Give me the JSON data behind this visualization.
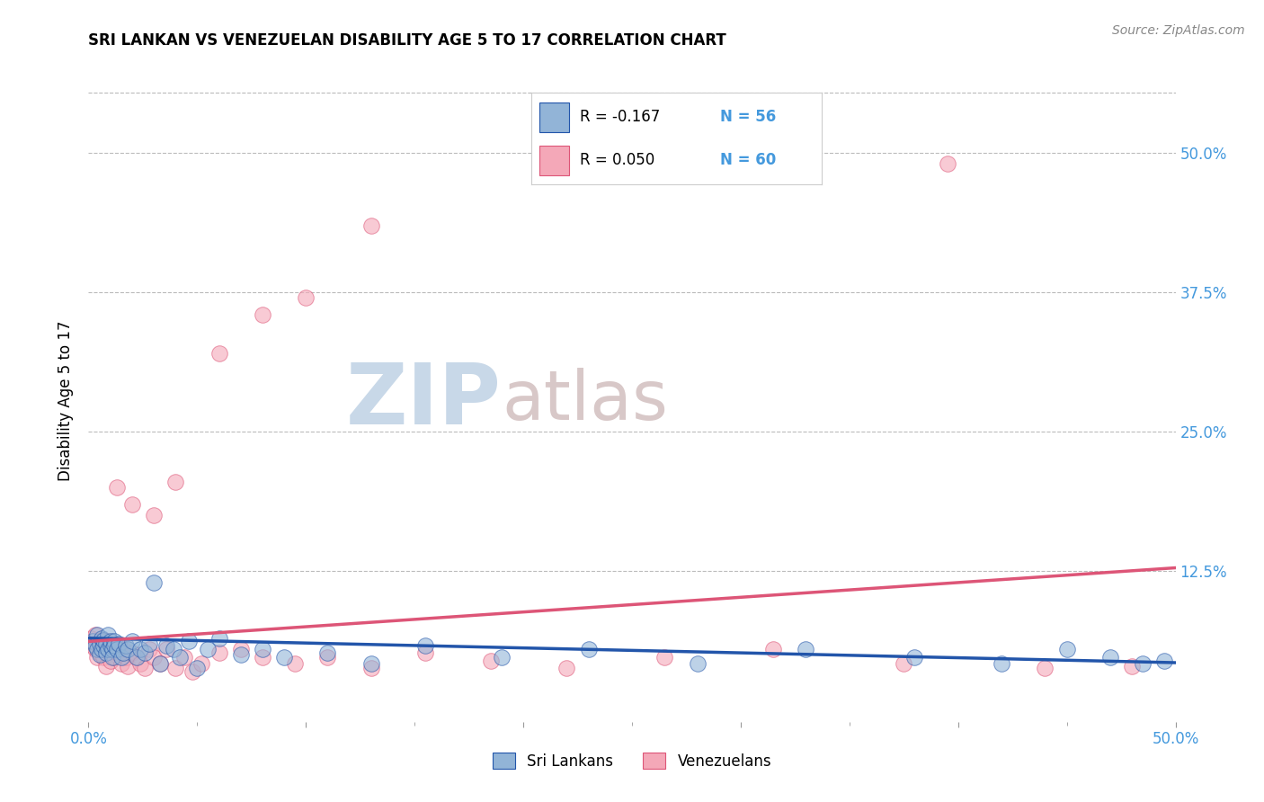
{
  "title": "SRI LANKAN VS VENEZUELAN DISABILITY AGE 5 TO 17 CORRELATION CHART",
  "source": "Source: ZipAtlas.com",
  "ylabel": "Disability Age 5 to 17",
  "legend_label1": "Sri Lankans",
  "legend_label2": "Venezuelans",
  "legend_R1": "R = -0.167",
  "legend_N1": "N = 56",
  "legend_R2": "R = 0.050",
  "legend_N2": "N = 60",
  "color_blue": "#92B4D7",
  "color_pink": "#F4A8B8",
  "color_blue_line": "#2255AA",
  "color_pink_line": "#DD5577",
  "color_axis_labels": "#4499DD",
  "ytick_labels": [
    "50.0%",
    "37.5%",
    "25.0%",
    "12.5%"
  ],
  "ytick_values": [
    0.5,
    0.375,
    0.25,
    0.125
  ],
  "xlim": [
    0.0,
    0.5
  ],
  "ylim": [
    -0.01,
    0.565
  ],
  "sri_lankan_x": [
    0.002,
    0.003,
    0.004,
    0.004,
    0.005,
    0.005,
    0.006,
    0.006,
    0.007,
    0.007,
    0.008,
    0.008,
    0.009,
    0.009,
    0.01,
    0.01,
    0.011,
    0.011,
    0.012,
    0.012,
    0.013,
    0.014,
    0.015,
    0.016,
    0.017,
    0.018,
    0.02,
    0.022,
    0.024,
    0.026,
    0.028,
    0.03,
    0.033,
    0.036,
    0.039,
    0.042,
    0.046,
    0.05,
    0.055,
    0.06,
    0.07,
    0.08,
    0.09,
    0.11,
    0.13,
    0.155,
    0.19,
    0.23,
    0.28,
    0.33,
    0.38,
    0.42,
    0.45,
    0.47,
    0.485,
    0.495
  ],
  "sri_lankan_y": [
    0.062,
    0.058,
    0.055,
    0.068,
    0.06,
    0.05,
    0.065,
    0.055,
    0.058,
    0.063,
    0.06,
    0.052,
    0.068,
    0.055,
    0.058,
    0.062,
    0.055,
    0.048,
    0.062,
    0.058,
    0.055,
    0.06,
    0.048,
    0.052,
    0.058,
    0.055,
    0.062,
    0.048,
    0.055,
    0.052,
    0.06,
    0.115,
    0.042,
    0.058,
    0.055,
    0.048,
    0.062,
    0.038,
    0.055,
    0.065,
    0.05,
    0.055,
    0.048,
    0.052,
    0.042,
    0.058,
    0.048,
    0.055,
    0.042,
    0.055,
    0.048,
    0.042,
    0.055,
    0.048,
    0.042,
    0.045
  ],
  "venezuelan_x": [
    0.001,
    0.002,
    0.003,
    0.003,
    0.004,
    0.004,
    0.005,
    0.005,
    0.006,
    0.006,
    0.007,
    0.007,
    0.008,
    0.008,
    0.009,
    0.009,
    0.01,
    0.011,
    0.012,
    0.013,
    0.014,
    0.015,
    0.016,
    0.017,
    0.018,
    0.02,
    0.022,
    0.024,
    0.026,
    0.028,
    0.03,
    0.033,
    0.036,
    0.04,
    0.044,
    0.048,
    0.052,
    0.06,
    0.07,
    0.08,
    0.095,
    0.11,
    0.13,
    0.155,
    0.185,
    0.22,
    0.265,
    0.315,
    0.375,
    0.44,
    0.013,
    0.02,
    0.03,
    0.04,
    0.06,
    0.08,
    0.1,
    0.13,
    0.395,
    0.48
  ],
  "venezuelan_y": [
    0.065,
    0.058,
    0.055,
    0.068,
    0.06,
    0.048,
    0.062,
    0.052,
    0.058,
    0.063,
    0.048,
    0.055,
    0.062,
    0.04,
    0.055,
    0.058,
    0.045,
    0.055,
    0.048,
    0.052,
    0.058,
    0.042,
    0.055,
    0.048,
    0.04,
    0.052,
    0.048,
    0.042,
    0.038,
    0.055,
    0.048,
    0.042,
    0.055,
    0.038,
    0.048,
    0.035,
    0.042,
    0.052,
    0.055,
    0.048,
    0.042,
    0.048,
    0.038,
    0.052,
    0.045,
    0.038,
    0.048,
    0.055,
    0.042,
    0.038,
    0.2,
    0.185,
    0.175,
    0.205,
    0.32,
    0.355,
    0.37,
    0.435,
    0.49,
    0.04
  ],
  "background_color": "#FFFFFF",
  "grid_color": "#BBBBBB",
  "watermark_zip": "ZIP",
  "watermark_atlas": "atlas",
  "watermark_color_zip": "#C8D8E8",
  "watermark_color_atlas": "#D8C8C8",
  "blue_line_start": 0.065,
  "blue_line_end": 0.043,
  "pink_line_start": 0.062,
  "pink_line_end": 0.128
}
